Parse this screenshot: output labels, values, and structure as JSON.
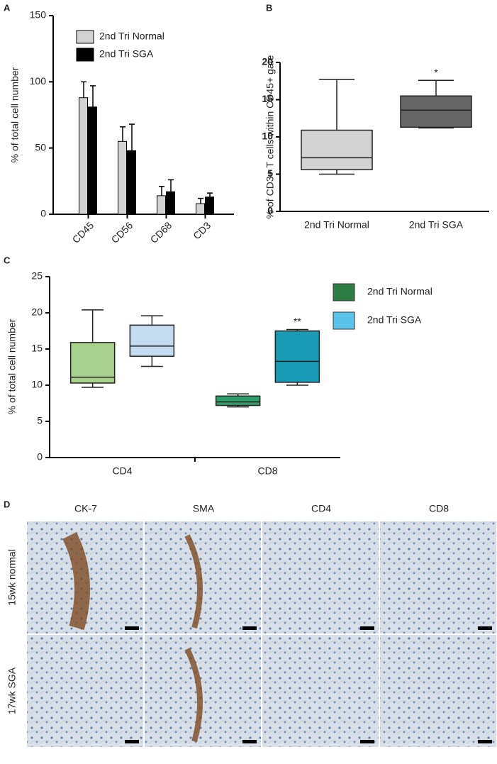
{
  "chart_data": [
    {
      "type": "bar",
      "panel": "A",
      "ylabel": "% of total cell number",
      "categories": [
        "CD45",
        "CD56",
        "CD68",
        "CD3"
      ],
      "series": [
        {
          "name": "2nd Tri Normal",
          "color": "#d3d3d3",
          "values": [
            88,
            55,
            14,
            8
          ],
          "errors": [
            12,
            11,
            7,
            4
          ]
        },
        {
          "name": "2nd Tri SGA",
          "color": "#000000",
          "values": [
            81,
            48,
            17,
            13
          ],
          "errors": [
            16,
            20,
            9,
            3
          ]
        }
      ],
      "ylim": [
        0,
        150
      ],
      "yticks": [
        0,
        50,
        100,
        150
      ]
    },
    {
      "type": "box",
      "panel": "B",
      "ylabel": "% of CD3+ T cells within CD45+ gate",
      "categories": [
        "2nd Tri Normal",
        "2nd Tri SGA"
      ],
      "series": [
        {
          "colors": [
            "#d3d3d3",
            "#666666"
          ],
          "values": [
            {
              "min": 5.0,
              "q1": 5.6,
              "median": 7.2,
              "q3": 10.9,
              "max": 17.7
            },
            {
              "min": 11.2,
              "q1": 11.3,
              "median": 13.6,
              "q3": 15.5,
              "max": 17.6
            }
          ]
        }
      ],
      "annotations": [
        null,
        "*"
      ],
      "ylim": [
        0,
        20
      ],
      "yticks": [
        0,
        5,
        10,
        15,
        20
      ]
    },
    {
      "type": "box",
      "panel": "C",
      "ylabel": "% of total cell number",
      "categories": [
        "CD4",
        "CD8"
      ],
      "series": [
        {
          "name": "2nd Tri Normal",
          "color": "#2e7d45",
          "colors": [
            "#a9d18e",
            "#2e9e6b"
          ],
          "values": [
            {
              "min": 9.7,
              "q1": 10.3,
              "median": 11.1,
              "q3": 15.9,
              "max": 20.4
            },
            {
              "min": 7.0,
              "q1": 7.2,
              "median": 7.7,
              "q3": 8.5,
              "max": 8.8
            }
          ]
        },
        {
          "name": "2nd Tri SGA",
          "color": "#5bc4ea",
          "colors": [
            "#c5dcf0",
            "#1a9bb5"
          ],
          "values": [
            {
              "min": 12.6,
              "q1": 14.0,
              "median": 15.4,
              "q3": 18.3,
              "max": 19.6
            },
            {
              "min": 10.0,
              "q1": 10.4,
              "median": 13.3,
              "q3": 17.5,
              "max": 17.7
            }
          ]
        }
      ],
      "annotations": [
        null,
        "**"
      ],
      "ylim": [
        0,
        25
      ],
      "yticks": [
        0,
        5,
        10,
        15,
        20,
        25
      ]
    }
  ],
  "panel_d": {
    "panel": "D",
    "columns": [
      "CK-7",
      "SMA",
      "CD4",
      "CD8"
    ],
    "rows": [
      "15wk normal",
      "17wk SGA"
    ]
  }
}
